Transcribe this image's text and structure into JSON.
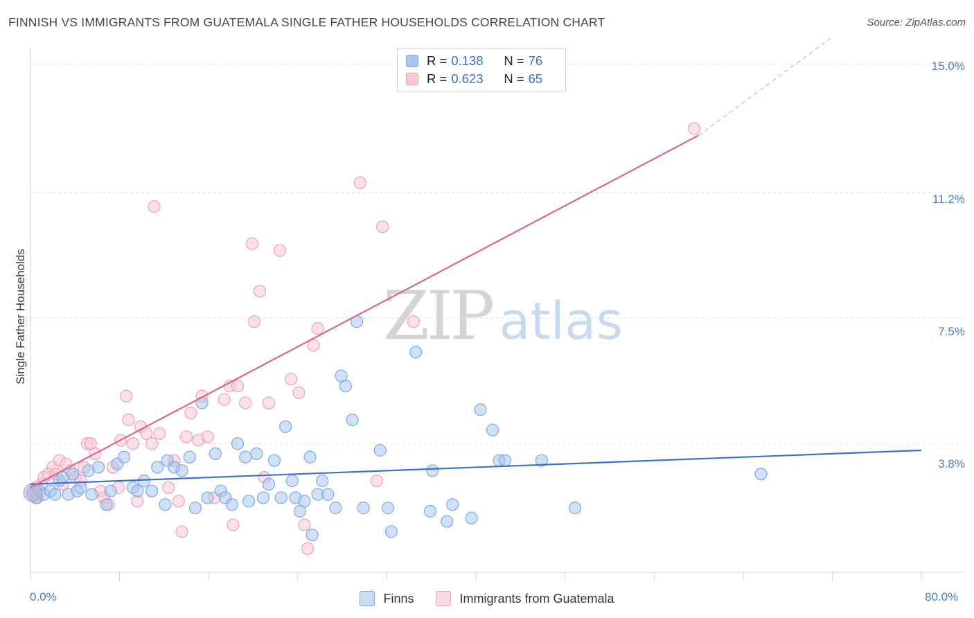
{
  "header": {
    "title": "FINNISH VS IMMIGRANTS FROM GUATEMALA SINGLE FATHER HOUSEHOLDS CORRELATION CHART",
    "source": "Source: ZipAtlas.com"
  },
  "watermark": {
    "zip": "ZIP",
    "atlas": "atlas"
  },
  "legend": {
    "r_label": "R =",
    "n_label": "N =",
    "rows": [
      {
        "r": "0.138",
        "n": "76",
        "color": "#a9c6ef"
      },
      {
        "r": "0.623",
        "n": "65",
        "color": "#f5b8cb"
      }
    ]
  },
  "bottom_legend": [
    {
      "label": "Finns",
      "color": "#a9c6ef",
      "border": "#7fa8e0"
    },
    {
      "label": "Immigrants from Guatemala",
      "color": "#f9c8d7",
      "border": "#ee9fb7"
    }
  ],
  "axes": {
    "ylabel": "Single Father Households",
    "yticks": [
      "15.0%",
      "11.2%",
      "7.5%",
      "3.8%"
    ],
    "xticks": [
      "0.0%",
      "80.0%"
    ]
  },
  "chart_data": {
    "type": "scatter",
    "title": "FINNISH VS IMMIGRANTS FROM GUATEMALA SINGLE FATHER HOUSEHOLDS CORRELATION CHART",
    "xlabel": "",
    "ylabel": "Single Father Households",
    "xlim": [
      0,
      80
    ],
    "ylim": [
      0,
      15.3
    ],
    "y_gridlines": [
      3.8,
      7.5,
      11.2,
      15.0
    ],
    "grid": "horizontal dashed",
    "legend_placement": "top-center",
    "series": [
      {
        "name": "Finns",
        "color": "#7fa8e0",
        "fill": "#a9c6ef",
        "trend": {
          "x0": 0,
          "y0": 2.6,
          "x1": 80,
          "y1": 3.6
        },
        "points": [
          [
            0.2,
            2.3
          ],
          [
            0.5,
            2.2
          ],
          [
            0.8,
            2.4
          ],
          [
            1.2,
            2.3
          ],
          [
            1.8,
            2.4
          ],
          [
            2.2,
            2.3
          ],
          [
            2.6,
            2.7
          ],
          [
            2.9,
            2.8
          ],
          [
            3.4,
            2.3
          ],
          [
            3.8,
            2.9
          ],
          [
            4.2,
            2.4
          ],
          [
            4.5,
            2.5
          ],
          [
            5.2,
            3.0
          ],
          [
            5.5,
            2.3
          ],
          [
            6.1,
            3.1
          ],
          [
            6.8,
            2.0
          ],
          [
            7.2,
            2.4
          ],
          [
            7.8,
            3.2
          ],
          [
            8.4,
            3.4
          ],
          [
            9.2,
            2.5
          ],
          [
            9.6,
            2.4
          ],
          [
            10.2,
            2.7
          ],
          [
            10.9,
            2.4
          ],
          [
            11.4,
            3.1
          ],
          [
            12.1,
            2.0
          ],
          [
            12.3,
            3.3
          ],
          [
            12.9,
            3.1
          ],
          [
            13.6,
            3.0
          ],
          [
            14.3,
            3.4
          ],
          [
            14.8,
            1.9
          ],
          [
            15.4,
            5.0
          ],
          [
            15.9,
            2.2
          ],
          [
            16.6,
            3.5
          ],
          [
            17.1,
            2.4
          ],
          [
            17.5,
            2.2
          ],
          [
            18.1,
            2.0
          ],
          [
            18.6,
            3.8
          ],
          [
            19.3,
            3.4
          ],
          [
            19.6,
            2.1
          ],
          [
            20.3,
            3.5
          ],
          [
            20.9,
            2.2
          ],
          [
            21.4,
            2.6
          ],
          [
            21.9,
            3.3
          ],
          [
            22.5,
            2.2
          ],
          [
            22.9,
            4.3
          ],
          [
            23.5,
            2.7
          ],
          [
            23.8,
            2.2
          ],
          [
            24.2,
            1.8
          ],
          [
            24.6,
            2.1
          ],
          [
            25.1,
            3.4
          ],
          [
            25.3,
            1.1
          ],
          [
            25.8,
            2.3
          ],
          [
            26.2,
            2.7
          ],
          [
            26.7,
            2.3
          ],
          [
            27.4,
            1.9
          ],
          [
            27.9,
            5.8
          ],
          [
            28.3,
            5.5
          ],
          [
            28.9,
            4.5
          ],
          [
            29.3,
            7.4
          ],
          [
            29.9,
            1.9
          ],
          [
            31.4,
            3.6
          ],
          [
            32.1,
            1.9
          ],
          [
            32.4,
            1.2
          ],
          [
            34.6,
            6.5
          ],
          [
            35.9,
            1.8
          ],
          [
            36.1,
            3.0
          ],
          [
            37.4,
            1.5
          ],
          [
            37.9,
            2.0
          ],
          [
            39.6,
            1.6
          ],
          [
            40.4,
            4.8
          ],
          [
            41.5,
            4.2
          ],
          [
            42.1,
            3.3
          ],
          [
            42.6,
            3.3
          ],
          [
            45.9,
            3.3
          ],
          [
            48.9,
            1.9
          ],
          [
            65.6,
            2.9
          ]
        ]
      },
      {
        "name": "Immigrants from Guatemala",
        "color": "#ee9fb7",
        "fill": "#f9c8d7",
        "trend": {
          "x0": 0,
          "y0": 2.5,
          "x1": 60,
          "y1": 12.9,
          "dashed_to": [
            72,
            15.8
          ]
        },
        "points": [
          [
            0.2,
            2.4
          ],
          [
            0.5,
            2.5
          ],
          [
            1.0,
            2.6
          ],
          [
            1.2,
            2.8
          ],
          [
            1.6,
            2.9
          ],
          [
            2.0,
            3.1
          ],
          [
            2.3,
            2.9
          ],
          [
            2.6,
            3.3
          ],
          [
            2.9,
            2.6
          ],
          [
            3.2,
            3.2
          ],
          [
            3.6,
            3.0
          ],
          [
            4.0,
            2.8
          ],
          [
            4.5,
            2.7
          ],
          [
            4.8,
            3.1
          ],
          [
            5.1,
            3.8
          ],
          [
            5.4,
            3.8
          ],
          [
            5.8,
            3.5
          ],
          [
            6.3,
            2.4
          ],
          [
            6.6,
            2.2
          ],
          [
            7.0,
            2.0
          ],
          [
            7.4,
            3.1
          ],
          [
            7.9,
            2.5
          ],
          [
            8.1,
            3.9
          ],
          [
            8.6,
            5.2
          ],
          [
            8.8,
            4.5
          ],
          [
            9.2,
            3.8
          ],
          [
            9.6,
            2.1
          ],
          [
            9.9,
            4.3
          ],
          [
            10.4,
            4.1
          ],
          [
            10.9,
            3.8
          ],
          [
            11.1,
            10.8
          ],
          [
            11.6,
            4.1
          ],
          [
            12.4,
            2.5
          ],
          [
            12.9,
            3.3
          ],
          [
            13.3,
            2.1
          ],
          [
            13.6,
            1.2
          ],
          [
            14.0,
            4.0
          ],
          [
            14.4,
            4.7
          ],
          [
            15.1,
            3.9
          ],
          [
            15.4,
            5.2
          ],
          [
            15.9,
            4.0
          ],
          [
            16.5,
            2.2
          ],
          [
            17.4,
            5.1
          ],
          [
            17.9,
            5.5
          ],
          [
            18.2,
            1.4
          ],
          [
            18.6,
            5.5
          ],
          [
            19.3,
            5.0
          ],
          [
            19.9,
            9.7
          ],
          [
            20.1,
            7.4
          ],
          [
            20.6,
            8.3
          ],
          [
            21.0,
            2.8
          ],
          [
            21.4,
            5.0
          ],
          [
            22.4,
            9.5
          ],
          [
            23.4,
            5.7
          ],
          [
            24.1,
            5.3
          ],
          [
            24.6,
            1.4
          ],
          [
            24.9,
            0.7
          ],
          [
            25.4,
            6.7
          ],
          [
            25.8,
            7.2
          ],
          [
            29.6,
            11.5
          ],
          [
            31.1,
            2.7
          ],
          [
            31.6,
            10.2
          ],
          [
            34.4,
            7.4
          ],
          [
            59.6,
            13.1
          ],
          [
            0.6,
            2.2
          ]
        ]
      }
    ]
  }
}
